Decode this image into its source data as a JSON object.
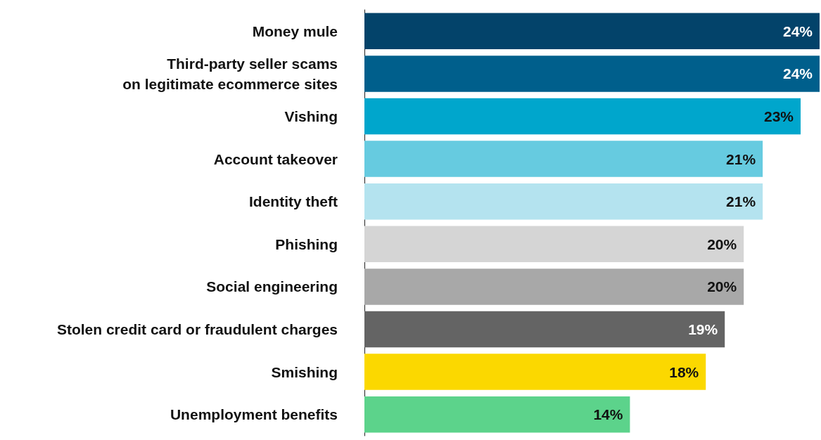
{
  "chart_data": {
    "type": "bar",
    "orientation": "horizontal",
    "categories": [
      "Money mule",
      "Third-party seller scams\non legitimate ecommerce sites",
      "Vishing",
      "Account takeover",
      "Identity theft",
      "Phishing",
      "Social engineering",
      "Stolen credit card or fraudulent charges",
      "Smishing",
      "Unemployment benefits"
    ],
    "values": [
      24,
      24,
      23,
      21,
      21,
      20,
      20,
      19,
      18,
      14
    ],
    "colors": [
      "#03436a",
      "#005f8c",
      "#00a6cc",
      "#66cbe0",
      "#b4e3ef",
      "#d5d5d5",
      "#a8a8a8",
      "#646464",
      "#fbd800",
      "#5cd38b"
    ],
    "value_labels": [
      "24%",
      "24%",
      "23%",
      "21%",
      "21%",
      "20%",
      "20%",
      "19%",
      "18%",
      "14%"
    ]
  }
}
